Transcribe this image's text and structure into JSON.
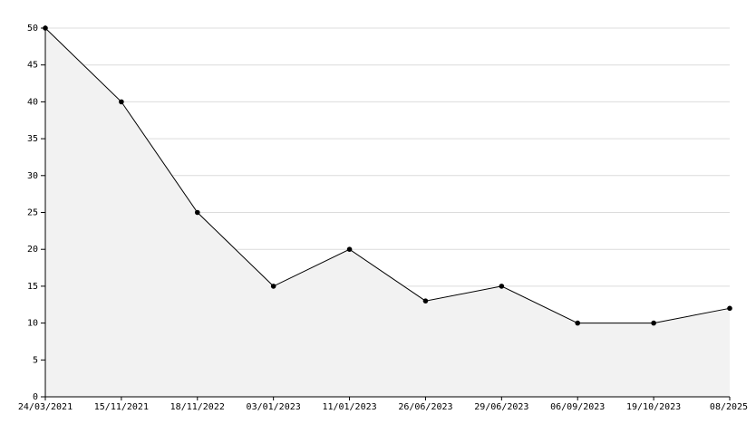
{
  "chart_data": {
    "type": "area",
    "categories": [
      "24/03/2021",
      "15/11/2021",
      "18/11/2022",
      "03/01/2023",
      "11/01/2023",
      "26/06/2023",
      "29/06/2023",
      "06/09/2023",
      "19/10/2023",
      "08/2025"
    ],
    "values": [
      50,
      40,
      25,
      15,
      20,
      13,
      15,
      10,
      10,
      12
    ],
    "color": "#000000",
    "fill": "#f2f2f2",
    "ylim": [
      0,
      50
    ],
    "yticks": [
      0,
      5,
      10,
      15,
      20,
      25,
      30,
      35,
      40,
      45,
      50
    ],
    "grid": true
  }
}
